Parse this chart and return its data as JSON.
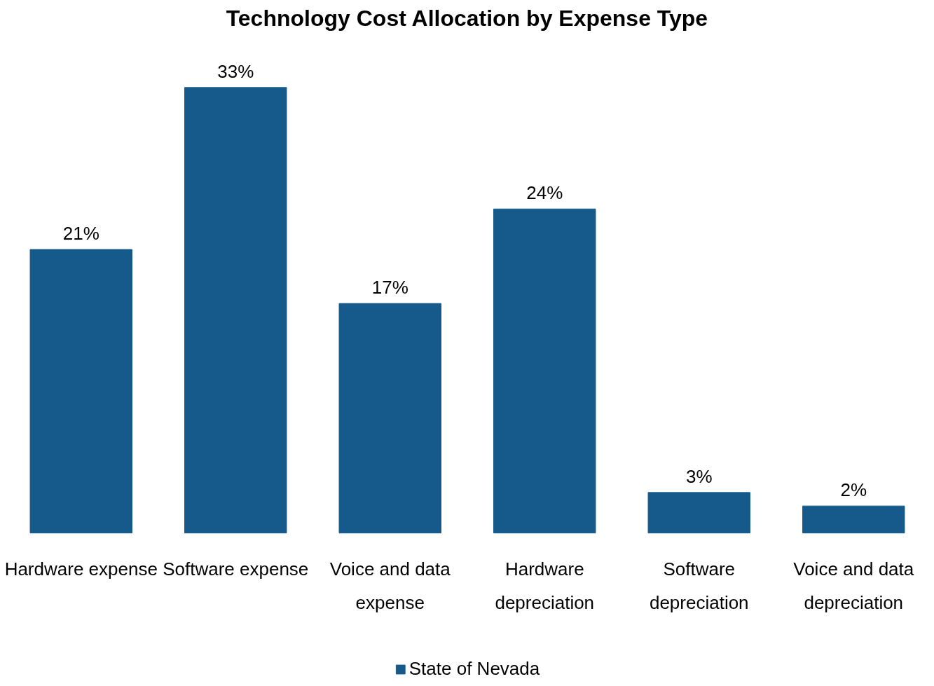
{
  "chart_data": {
    "type": "bar",
    "title": "Technology Cost Allocation by Expense Type",
    "categories": [
      "Hardware expense",
      "Software expense",
      "Voice and data expense",
      "Hardware depreciation",
      "Software depreciation",
      "Voice and data depreciation"
    ],
    "series": [
      {
        "name": "State of Nevada",
        "color": "#155a8a",
        "values": [
          21,
          33,
          17,
          24,
          3,
          2
        ],
        "value_labels": [
          "21%",
          "33%",
          "17%",
          "24%",
          "3%",
          "2%"
        ]
      }
    ],
    "legend": "bottom"
  }
}
